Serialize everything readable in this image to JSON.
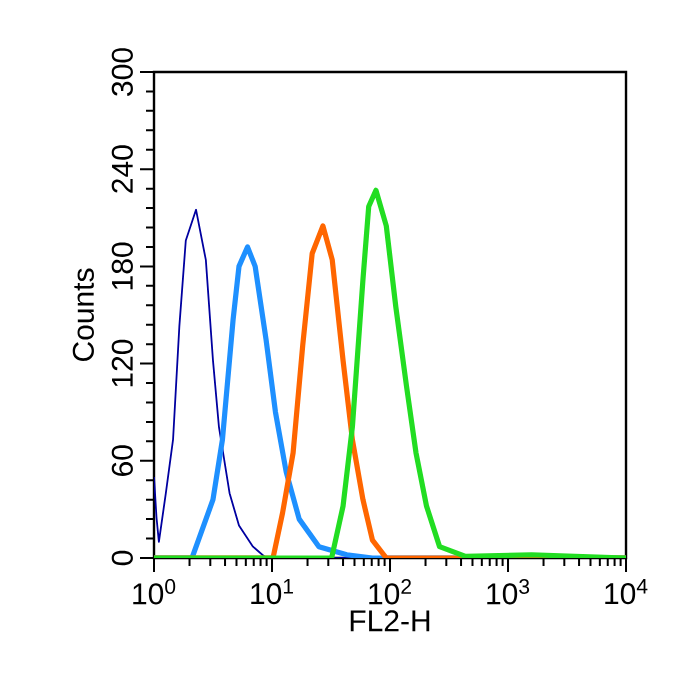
{
  "chart_data": {
    "type": "line",
    "xlabel": "FL2-H",
    "ylabel": "Counts",
    "log": "x",
    "xlim": [
      1,
      10000
    ],
    "ylim": [
      0,
      300
    ],
    "xticks": [
      {
        "value": 1,
        "label": "10$^{0}$"
      },
      {
        "value": 10,
        "label": "10$^{1}$"
      },
      {
        "value": 100,
        "label": "10$^{2}$"
      },
      {
        "value": 1000,
        "label": "10$^{3}$"
      },
      {
        "value": 10000,
        "label": "10$^{4}$"
      }
    ],
    "yticks": [
      0,
      60,
      120,
      180,
      240,
      300
    ],
    "marker": "none",
    "line_style": "solid",
    "series": [
      {
        "color": "#0000a0",
        "x": [
          1,
          1.05,
          1.1,
          1.26,
          1.45,
          1.64,
          1.86,
          2.27,
          2.75,
          3.16,
          3.55,
          4.37,
          5.25,
          6.9,
          8.9,
          10000
        ],
        "values": [
          50,
          25,
          10,
          40,
          73,
          143,
          196,
          215,
          184,
          122,
          81,
          40,
          20,
          7,
          0,
          0
        ]
      },
      {
        "color": "#1e90ff",
        "x": [
          1,
          2.1,
          3.16,
          3.8,
          4.68,
          5.25,
          6.2,
          7.2,
          8.9,
          10.7,
          13.2,
          17,
          25,
          43,
          71,
          10000
        ],
        "values": [
          0,
          0,
          36,
          73,
          147,
          180,
          192,
          180,
          135,
          90,
          53,
          24,
          7,
          2,
          0,
          0
        ]
      },
      {
        "color": "#ff6600",
        "x": [
          1,
          10.2,
          12.3,
          15.1,
          18.2,
          21.9,
          27,
          32.4,
          40,
          48,
          59,
          71,
          93,
          10000
        ],
        "values": [
          0,
          0,
          28,
          65,
          131,
          188,
          205,
          184,
          122,
          73,
          36,
          11,
          0,
          0
        ]
      },
      {
        "color": "#22dd22",
        "x": [
          1,
          32,
          40,
          48,
          59,
          66,
          76,
          93,
          112,
          138,
          166,
          204,
          263,
          437,
          1585,
          10000
        ],
        "values": [
          0,
          0,
          32,
          81,
          172,
          217,
          227,
          205,
          155,
          106,
          65,
          32,
          7,
          1,
          2,
          0
        ]
      }
    ]
  }
}
